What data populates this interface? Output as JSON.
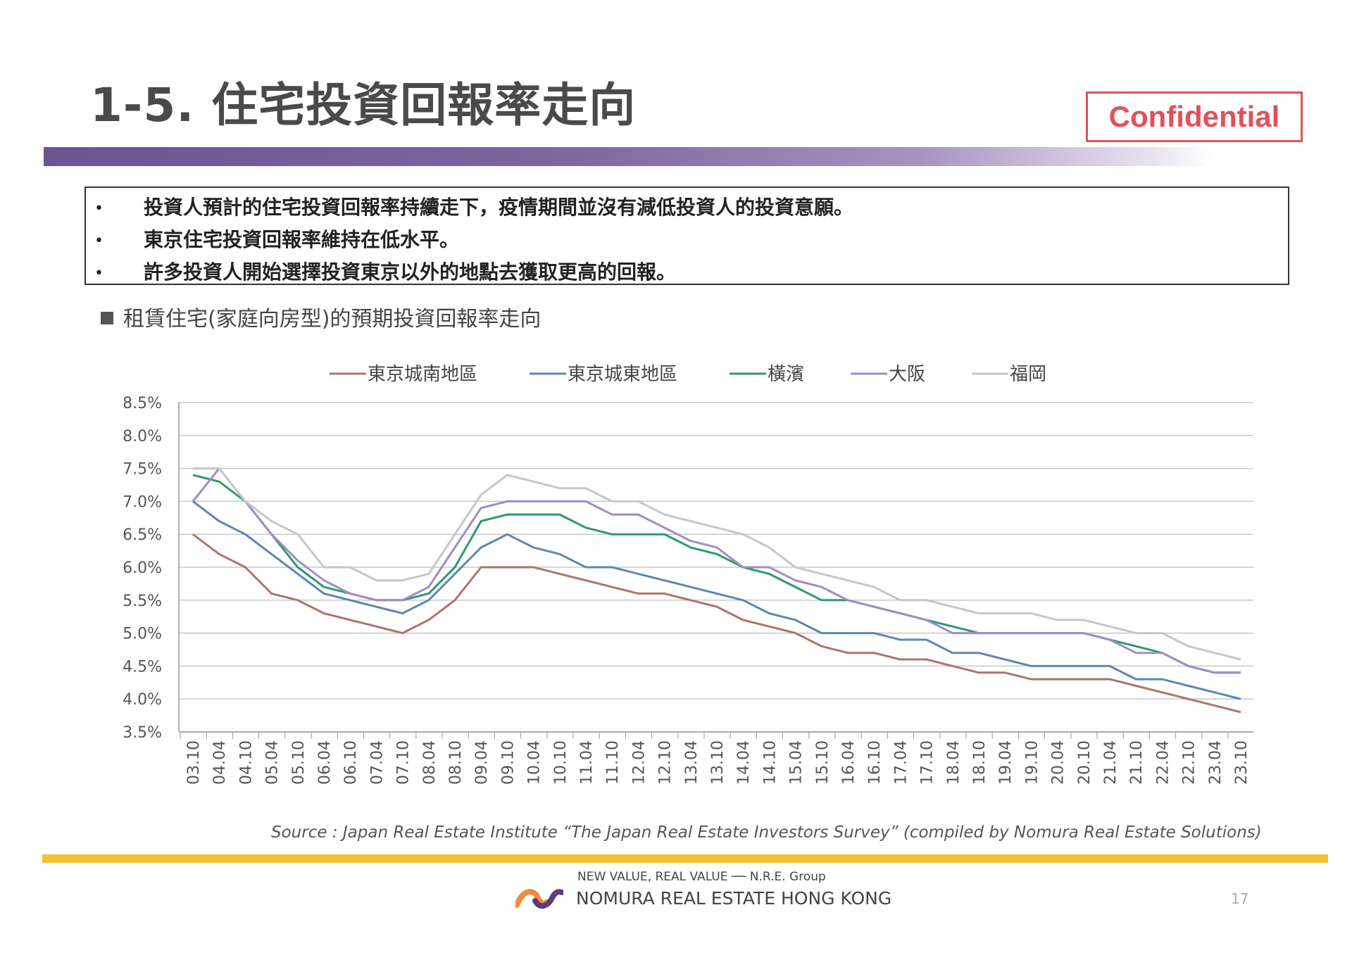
{
  "header": {
    "title": "1-5. 住宅投資回報率走向",
    "badge": "Confidential"
  },
  "bullets": [
    "投資人預計的住宅投資回報率持續走下，疫情期間並沒有減低投資人的投資意願。",
    "東京住宅投資回報率維持在低水平。",
    "許多投資人開始選擇投資東京以外的地點去獲取更高的回報。"
  ],
  "bullet_symbol": "•",
  "section_heading": "租賃住宅(家庭向房型)的預期投資回報率走向",
  "chart_data": {
    "type": "line",
    "title": "",
    "xlabel": "",
    "ylabel": "",
    "ylim": [
      3.5,
      8.5
    ],
    "yticks": [
      "8.5%",
      "8.0%",
      "7.5%",
      "7.0%",
      "6.5%",
      "6.0%",
      "5.5%",
      "5.0%",
      "4.5%",
      "4.0%",
      "3.5%"
    ],
    "grid": true,
    "legend": "top",
    "categories": [
      "03.10",
      "04.04",
      "04.10",
      "05.04",
      "05.10",
      "06.04",
      "06.10",
      "07.04",
      "07.10",
      "08.04",
      "08.10",
      "09.04",
      "09.10",
      "10.04",
      "10.10",
      "11.04",
      "11.10",
      "12.04",
      "12.10",
      "13.04",
      "13.10",
      "14.04",
      "14.10",
      "15.04",
      "15.10",
      "16.04",
      "16.10",
      "17.04",
      "17.10",
      "18.04",
      "18.10",
      "19.04",
      "19.10",
      "20.04",
      "20.10",
      "21.04",
      "21.10",
      "22.04",
      "22.10",
      "23.04",
      "23.10"
    ],
    "series": [
      {
        "name": "東京城南地區",
        "color": "#b0736d",
        "values": [
          6.5,
          6.2,
          6.0,
          5.6,
          5.5,
          5.3,
          5.2,
          5.1,
          5.0,
          5.2,
          5.5,
          6.0,
          6.0,
          6.0,
          5.9,
          5.8,
          5.7,
          5.6,
          5.6,
          5.5,
          5.4,
          5.2,
          5.1,
          5.0,
          4.8,
          4.7,
          4.7,
          4.6,
          4.6,
          4.5,
          4.4,
          4.4,
          4.3,
          4.3,
          4.3,
          4.3,
          4.2,
          4.1,
          4.0,
          3.9,
          3.8
        ]
      },
      {
        "name": "東京城東地區",
        "color": "#5b87b5",
        "values": [
          7.0,
          6.7,
          6.5,
          6.2,
          5.9,
          5.6,
          5.5,
          5.4,
          5.3,
          5.5,
          5.9,
          6.3,
          6.5,
          6.3,
          6.2,
          6.0,
          6.0,
          5.9,
          5.8,
          5.7,
          5.6,
          5.5,
          5.3,
          5.2,
          5.0,
          5.0,
          5.0,
          4.9,
          4.9,
          4.7,
          4.7,
          4.6,
          4.5,
          4.5,
          4.5,
          4.5,
          4.3,
          4.3,
          4.2,
          4.1,
          4.0
        ]
      },
      {
        "name": "橫濱",
        "color": "#2e9a6a",
        "values": [
          7.4,
          7.3,
          7.0,
          6.5,
          6.0,
          5.7,
          5.6,
          5.5,
          5.5,
          5.6,
          6.0,
          6.7,
          6.8,
          6.8,
          6.8,
          6.6,
          6.5,
          6.5,
          6.5,
          6.3,
          6.2,
          6.0,
          5.9,
          5.7,
          5.5,
          5.5,
          5.4,
          5.3,
          5.2,
          5.1,
          5.0,
          5.0,
          5.0,
          5.0,
          5.0,
          4.9,
          4.8,
          4.7,
          4.5,
          4.4,
          4.4
        ]
      },
      {
        "name": "大阪",
        "color": "#a08cc6",
        "values": [
          7.0,
          7.5,
          7.0,
          6.5,
          6.1,
          5.8,
          5.6,
          5.5,
          5.5,
          5.7,
          6.3,
          6.9,
          7.0,
          7.0,
          7.0,
          7.0,
          6.8,
          6.8,
          6.6,
          6.4,
          6.3,
          6.0,
          6.0,
          5.8,
          5.7,
          5.5,
          5.4,
          5.3,
          5.2,
          5.0,
          5.0,
          5.0,
          5.0,
          5.0,
          5.0,
          4.9,
          4.7,
          4.7,
          4.5,
          4.4,
          4.4
        ]
      },
      {
        "name": "福岡",
        "color": "#c2c8cc",
        "values": [
          7.5,
          7.5,
          7.0,
          6.7,
          6.5,
          6.0,
          6.0,
          5.8,
          5.8,
          5.9,
          6.5,
          7.1,
          7.4,
          7.3,
          7.2,
          7.2,
          7.0,
          7.0,
          6.8,
          6.7,
          6.6,
          6.5,
          6.3,
          6.0,
          5.9,
          5.8,
          5.7,
          5.5,
          5.5,
          5.4,
          5.3,
          5.3,
          5.3,
          5.2,
          5.2,
          5.1,
          5.0,
          5.0,
          4.8,
          4.7,
          4.6
        ]
      }
    ]
  },
  "source": "Source : Japan Real Estate Institute “The Japan Real Estate Investors Survey” (compiled by Nomura Real Estate Solutions)",
  "footer": {
    "tagline": "NEW VALUE, REAL VALUE ── N.R.E. Group",
    "company": "NOMURA REAL ESTATE HONG KONG",
    "page": "17"
  }
}
